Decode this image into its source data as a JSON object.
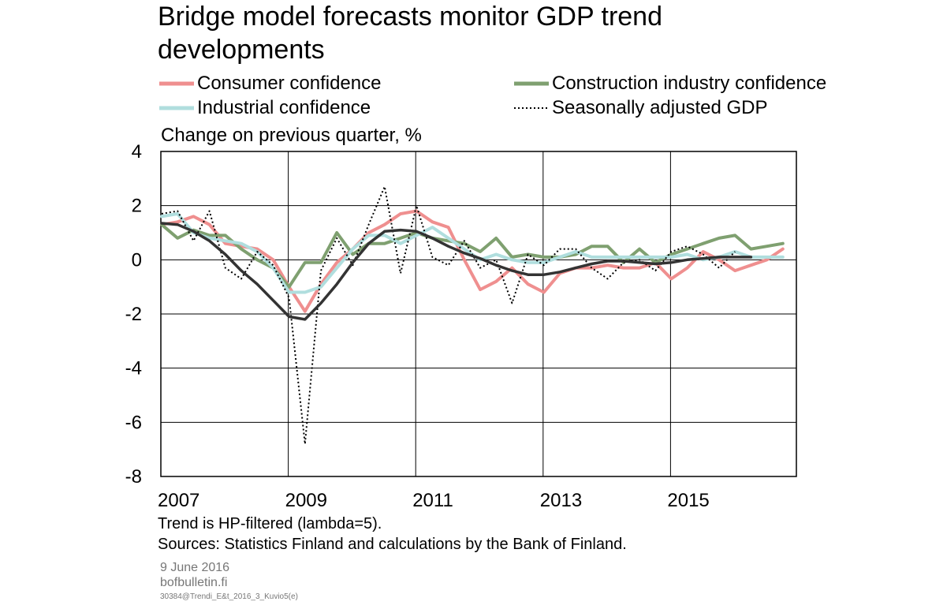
{
  "title": "Bridge model forecasts monitor GDP trend developments",
  "legend": [
    {
      "label": "Consumer confidence",
      "color": "#ef8f8f",
      "style": "solid"
    },
    {
      "label": "Construction industry confidence",
      "color": "#7fa070",
      "style": "solid"
    },
    {
      "label": "Industrial confidence",
      "color": "#b0dede",
      "style": "solid"
    },
    {
      "label": "Seasonally adjusted GDP",
      "color": "#000000",
      "style": "dotted"
    }
  ],
  "unit_label": "Change on previous quarter, %",
  "notes": {
    "trend": "Trend is HP-filtered (lambda=5).",
    "sources": "Sources: Statistics Finland and calculations by the Bank of Finland."
  },
  "footer": {
    "date": "9 June 2016",
    "site": "bofbulletin.fi",
    "code": "30384@Trendi_E&t_2016_3_Kuvio5(e)"
  },
  "chart_data": {
    "type": "line",
    "x_start": "2007Q1",
    "x_ticks": [
      "2007",
      "2009",
      "2011",
      "2013",
      "2015"
    ],
    "ylim": [
      -8,
      4
    ],
    "y_ticks": [
      "4",
      "2",
      "0",
      "-2",
      "-4",
      "-6",
      "-8"
    ],
    "grid": true,
    "series": [
      {
        "name": "Consumer confidence",
        "color": "#ef8f8f",
        "width": 4,
        "dash": "",
        "values": [
          1.3,
          1.4,
          1.6,
          1.3,
          0.6,
          0.5,
          0.4,
          0.0,
          -1.0,
          -1.9,
          -0.9,
          -0.1,
          0.4,
          1.0,
          1.3,
          1.7,
          1.8,
          1.4,
          1.2,
          0.0,
          -1.1,
          -0.8,
          -0.3,
          -0.9,
          -1.2,
          -0.5,
          -0.3,
          -0.3,
          -0.2,
          -0.3,
          -0.3,
          -0.1,
          -0.7,
          -0.3,
          0.3,
          0.0,
          -0.4,
          -0.2,
          0.0,
          0.4
        ]
      },
      {
        "name": "Construction industry confidence",
        "color": "#7fa070",
        "width": 4,
        "dash": "",
        "values": [
          1.3,
          0.8,
          1.1,
          0.9,
          0.9,
          0.4,
          0.0,
          -0.3,
          -1.0,
          -0.1,
          -0.1,
          1.0,
          0.2,
          0.6,
          0.6,
          0.8,
          1.0,
          0.8,
          0.7,
          0.6,
          0.3,
          0.8,
          0.1,
          0.2,
          0.1,
          0.1,
          0.2,
          0.5,
          0.5,
          -0.1,
          0.4,
          -0.1,
          0.2,
          0.4,
          0.6,
          0.8,
          0.9,
          0.4,
          0.5,
          0.6
        ]
      },
      {
        "name": "Industrial confidence",
        "color": "#b0dede",
        "width": 4,
        "dash": "",
        "values": [
          1.6,
          1.7,
          1.0,
          0.8,
          0.7,
          0.6,
          0.3,
          -0.3,
          -1.2,
          -1.2,
          -1.0,
          -0.3,
          0.4,
          0.9,
          0.9,
          0.6,
          0.9,
          1.2,
          0.8,
          0.4,
          0.0,
          0.2,
          0.0,
          -0.1,
          -0.1,
          0.1,
          0.3,
          0.1,
          0.1,
          0.1,
          0.1,
          0.1,
          0.1,
          0.2,
          0.0,
          0.1,
          0.3,
          0.1,
          0.1,
          0.1
        ]
      },
      {
        "name": "Seasonally adjusted GDP",
        "color": "#000000",
        "width": 2,
        "dash": "2,3",
        "values": [
          1.7,
          1.8,
          0.7,
          1.8,
          -0.3,
          -0.7,
          0.3,
          -0.2,
          -1.4,
          -6.8,
          -0.4,
          0.8,
          -0.2,
          1.3,
          2.7,
          -0.5,
          2.0,
          0.1,
          -0.2,
          0.7,
          -0.3,
          0.0,
          -1.6,
          0.2,
          -0.2,
          0.4,
          0.4,
          -0.3,
          -0.7,
          -0.1,
          0.0,
          -0.4,
          0.3,
          0.5,
          0.2,
          -0.3,
          0.3
        ]
      },
      {
        "name": "",
        "color": "#333333",
        "width": 3.5,
        "dash": "",
        "values": [
          1.35,
          1.3,
          1.05,
          0.7,
          0.2,
          -0.4,
          -0.9,
          -1.5,
          -2.1,
          -2.2,
          -1.6,
          -0.9,
          -0.1,
          0.6,
          1.05,
          1.1,
          1.05,
          0.8,
          0.5,
          0.25,
          0.05,
          -0.2,
          -0.4,
          -0.55,
          -0.55,
          -0.45,
          -0.3,
          -0.15,
          -0.05,
          -0.05,
          -0.1,
          -0.15,
          -0.1,
          0.0,
          0.05,
          0.1,
          0.1,
          0.1
        ]
      }
    ]
  }
}
